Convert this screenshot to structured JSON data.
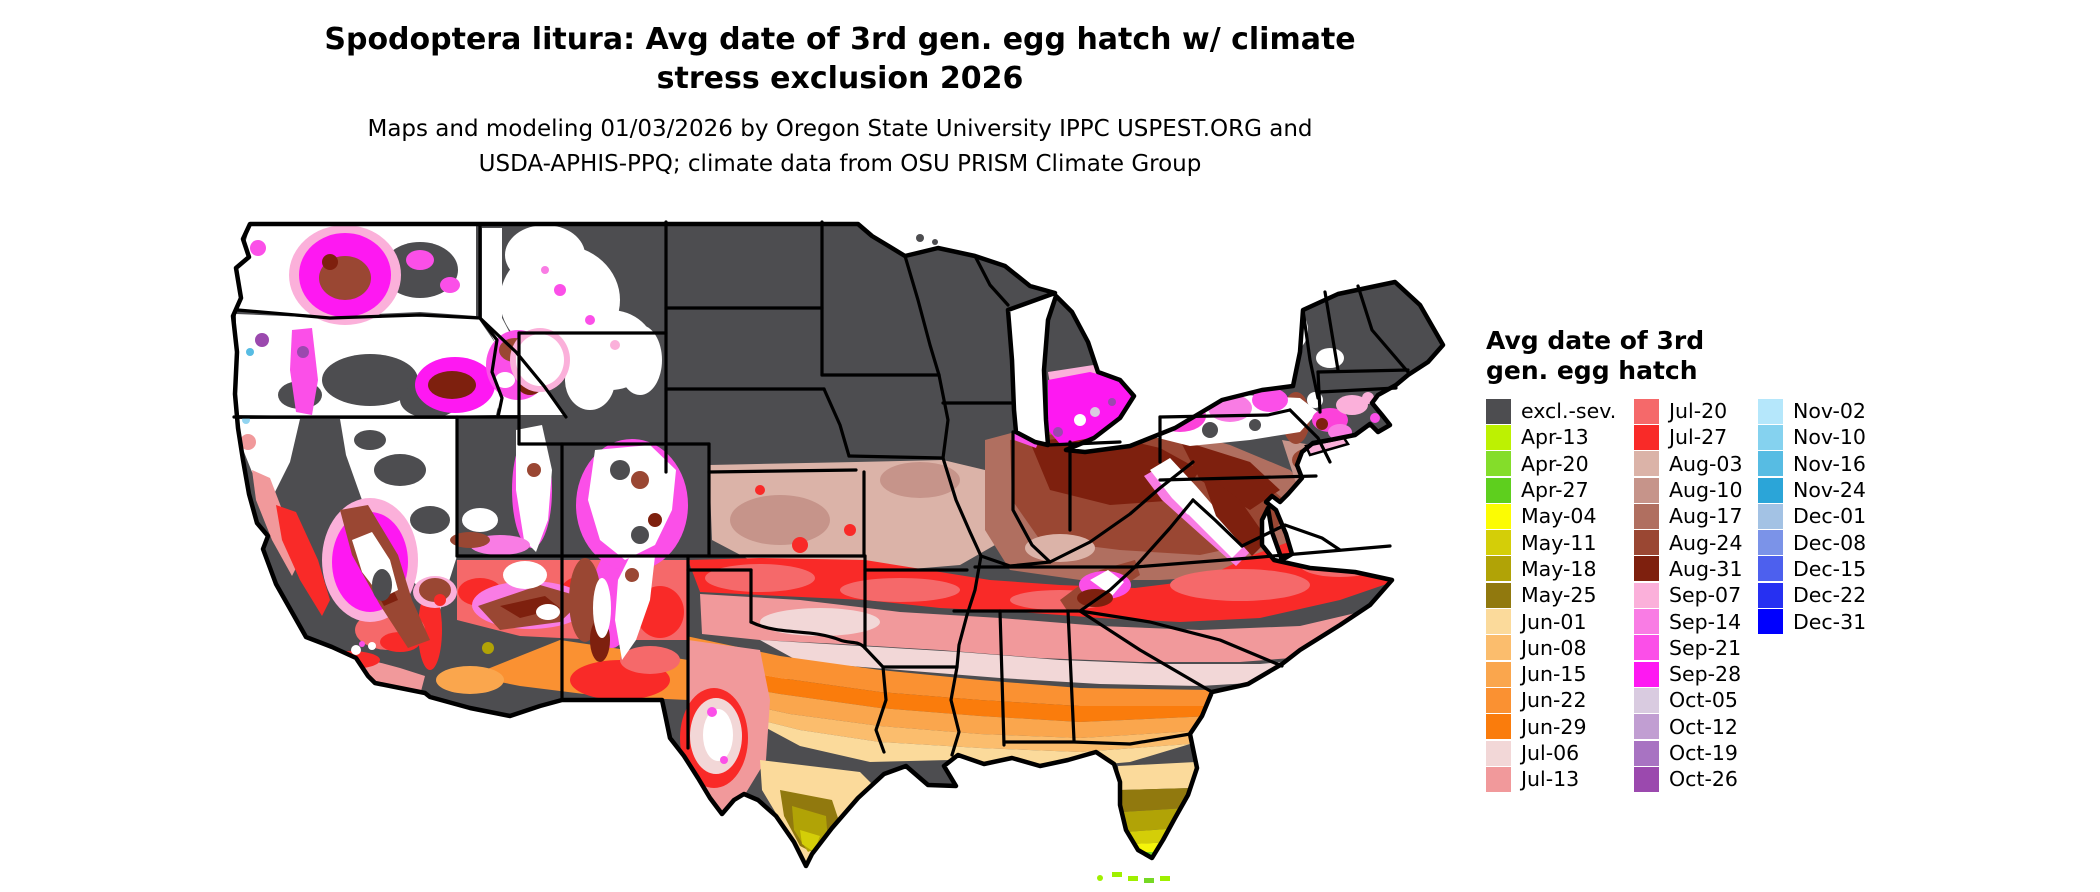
{
  "title": {
    "line1": "Spodoptera litura: Avg date of 3rd gen. egg hatch w/ climate",
    "line2": "stress exclusion 2026"
  },
  "subtitle": {
    "line1": "Maps and modeling 01/03/2026 by Oregon State University IPPC USPEST.ORG and",
    "line2": "USDA-APHIS-PPQ; climate data from OSU PRISM Climate Group"
  },
  "legend": {
    "title_line1": "Avg date of 3rd",
    "title_line2": "gen. egg hatch",
    "columns": [
      [
        {
          "label": "excl.-sev.",
          "color": "#4d4d50"
        },
        {
          "label": "Apr-13",
          "color": "#bdf102"
        },
        {
          "label": "Apr-20",
          "color": "#84dd2a"
        },
        {
          "label": "Apr-27",
          "color": "#5ecf1e"
        },
        {
          "label": "May-04",
          "color": "#fcfc03"
        },
        {
          "label": "May-11",
          "color": "#d4ce08"
        },
        {
          "label": "May-18",
          "color": "#b1a306"
        },
        {
          "label": "May-25",
          "color": "#91790e"
        },
        {
          "label": "Jun-01",
          "color": "#fbda9b"
        },
        {
          "label": "Jun-08",
          "color": "#fbbd6d"
        },
        {
          "label": "Jun-15",
          "color": "#faa64d"
        },
        {
          "label": "Jun-22",
          "color": "#fa9132"
        },
        {
          "label": "Jun-29",
          "color": "#fa7c0c"
        },
        {
          "label": "Jul-06",
          "color": "#f2d7d7"
        },
        {
          "label": "Jul-13",
          "color": "#f1999b"
        }
      ],
      [
        {
          "label": "Jul-20",
          "color": "#f5696a"
        },
        {
          "label": "Jul-27",
          "color": "#f92a28"
        },
        {
          "label": "Aug-03",
          "color": "#dbb3a8"
        },
        {
          "label": "Aug-10",
          "color": "#c6948a"
        },
        {
          "label": "Aug-17",
          "color": "#b06f60"
        },
        {
          "label": "Aug-24",
          "color": "#9a4733"
        },
        {
          "label": "Aug-31",
          "color": "#7e200e"
        },
        {
          "label": "Sep-07",
          "color": "#fbb0da"
        },
        {
          "label": "Sep-14",
          "color": "#f97ce4"
        },
        {
          "label": "Sep-21",
          "color": "#fb4fe8"
        },
        {
          "label": "Sep-28",
          "color": "#fe18f2"
        },
        {
          "label": "Oct-05",
          "color": "#d9cbe0"
        },
        {
          "label": "Oct-12",
          "color": "#c19ed2"
        },
        {
          "label": "Oct-19",
          "color": "#a873c2"
        },
        {
          "label": "Oct-26",
          "color": "#9b49ae"
        }
      ],
      [
        {
          "label": "Nov-02",
          "color": "#b5e7fb"
        },
        {
          "label": "Nov-10",
          "color": "#85d2ef"
        },
        {
          "label": "Nov-16",
          "color": "#57bce3"
        },
        {
          "label": "Nov-24",
          "color": "#2ba5d8"
        },
        {
          "label": "Dec-01",
          "color": "#a3c2e4"
        },
        {
          "label": "Dec-08",
          "color": "#7b93e8"
        },
        {
          "label": "Dec-15",
          "color": "#4d60ee"
        },
        {
          "label": "Dec-22",
          "color": "#2630f2"
        },
        {
          "label": "Dec-31",
          "color": "#0000fe"
        }
      ]
    ]
  },
  "chart_data": {
    "type": "heatmap",
    "title": "Spodoptera litura: Avg date of 3rd gen. egg hatch w/ climate stress exclusion 2026",
    "subtitle": "Maps and modeling 01/03/2026 by Oregon State University IPPC USPEST.ORG and USDA-APHIS-PPQ; climate data from OSU PRISM Climate Group",
    "region": "Continental United States",
    "value_units": "average date of 3rd generation egg hatch (weekly bins)",
    "legend_title": "Avg date of 3rd gen. egg hatch",
    "legend_position": "right",
    "legend_categories": [
      "excl.-sev.",
      "Apr-13",
      "Apr-20",
      "Apr-27",
      "May-04",
      "May-11",
      "May-18",
      "May-25",
      "Jun-01",
      "Jun-08",
      "Jun-15",
      "Jun-22",
      "Jun-29",
      "Jul-06",
      "Jul-13",
      "Jul-20",
      "Jul-27",
      "Aug-03",
      "Aug-10",
      "Aug-17",
      "Aug-24",
      "Aug-31",
      "Sep-07",
      "Sep-14",
      "Sep-21",
      "Sep-28",
      "Oct-05",
      "Oct-12",
      "Oct-19",
      "Oct-26",
      "Nov-02",
      "Nov-10",
      "Nov-16",
      "Nov-24",
      "Dec-01",
      "Dec-08",
      "Dec-15",
      "Dec-22",
      "Dec-31"
    ],
    "legend_colors": [
      "#4d4d50",
      "#bdf102",
      "#84dd2a",
      "#5ecf1e",
      "#fcfc03",
      "#d4ce08",
      "#b1a306",
      "#91790e",
      "#fbda9b",
      "#fbbd6d",
      "#faa64d",
      "#fa9132",
      "#fa7c0c",
      "#f2d7d7",
      "#f1999b",
      "#f5696a",
      "#f92a28",
      "#dbb3a8",
      "#c6948a",
      "#b06f60",
      "#9a4733",
      "#7e200e",
      "#fbb0da",
      "#f97ce4",
      "#fb4fe8",
      "#fe18f2",
      "#d9cbe0",
      "#c19ed2",
      "#a873c2",
      "#9b49ae",
      "#b5e7fb",
      "#85d2ef",
      "#57bce3",
      "#2ba5d8",
      "#a3c2e4",
      "#7b93e8",
      "#4d60ee",
      "#2630f2",
      "#0000fe"
    ],
    "map_observations": [
      {
        "area": "Northern tier: Montana, Dakotas, Nebraska, Minnesota, Iowa, Wisconsin, northern Illinois, Michigan UP, eastern Colorado plains, northern New York, Vermont, New Hampshire, Maine",
        "category": "excl.-sev."
      },
      {
        "area": "Pacific Northwest lowlands, Great Basin (much of WA, OR, ID, NV, UT)",
        "category": "white / no predicted hatch"
      },
      {
        "area": "Cascades, northern Rockies, Sierra Nevada, Wasatch, Colorado Rockies, high Appalachians (fringes)",
        "category": "Sep-07 to Oct-26"
      },
      {
        "area": "Southern Michigan near Lake Michigan, southern New England coast, western New York",
        "category": "Sep-14 to Sep-28"
      },
      {
        "area": "Ohio, Indiana, Kentucky, West Virginia, Pennsylvania, Maryland piedmont",
        "category": "Aug-17 to Aug-31"
      },
      {
        "area": "Kansas, Missouri, southern Illinois, New Jersey, Delmarva",
        "category": "Aug-03 to Aug-10"
      },
      {
        "area": "Oklahoma, northern Texas, Tennessee, Virginia, North Carolina piedmont, California Central Valley",
        "category": "Jul-20 to Jul-27"
      },
      {
        "area": "Arkansas, northern Mississippi/Alabama/Georgia, South Carolina",
        "category": "Jul-06 to Jul-13"
      },
      {
        "area": "Central Texas through southern Georgia, southwestern Arizona",
        "category": "Jun-15 to Jun-29"
      },
      {
        "area": "Gulf coast, northern Florida",
        "category": "Jun-01 to Jun-08"
      },
      {
        "area": "South Texas (Rio Grande Valley), central Florida",
        "category": "May-04 to May-25"
      },
      {
        "area": "Southern Florida",
        "category": "Apr-20 to May-04"
      },
      {
        "area": "Florida Keys",
        "category": "Apr-13"
      }
    ]
  }
}
